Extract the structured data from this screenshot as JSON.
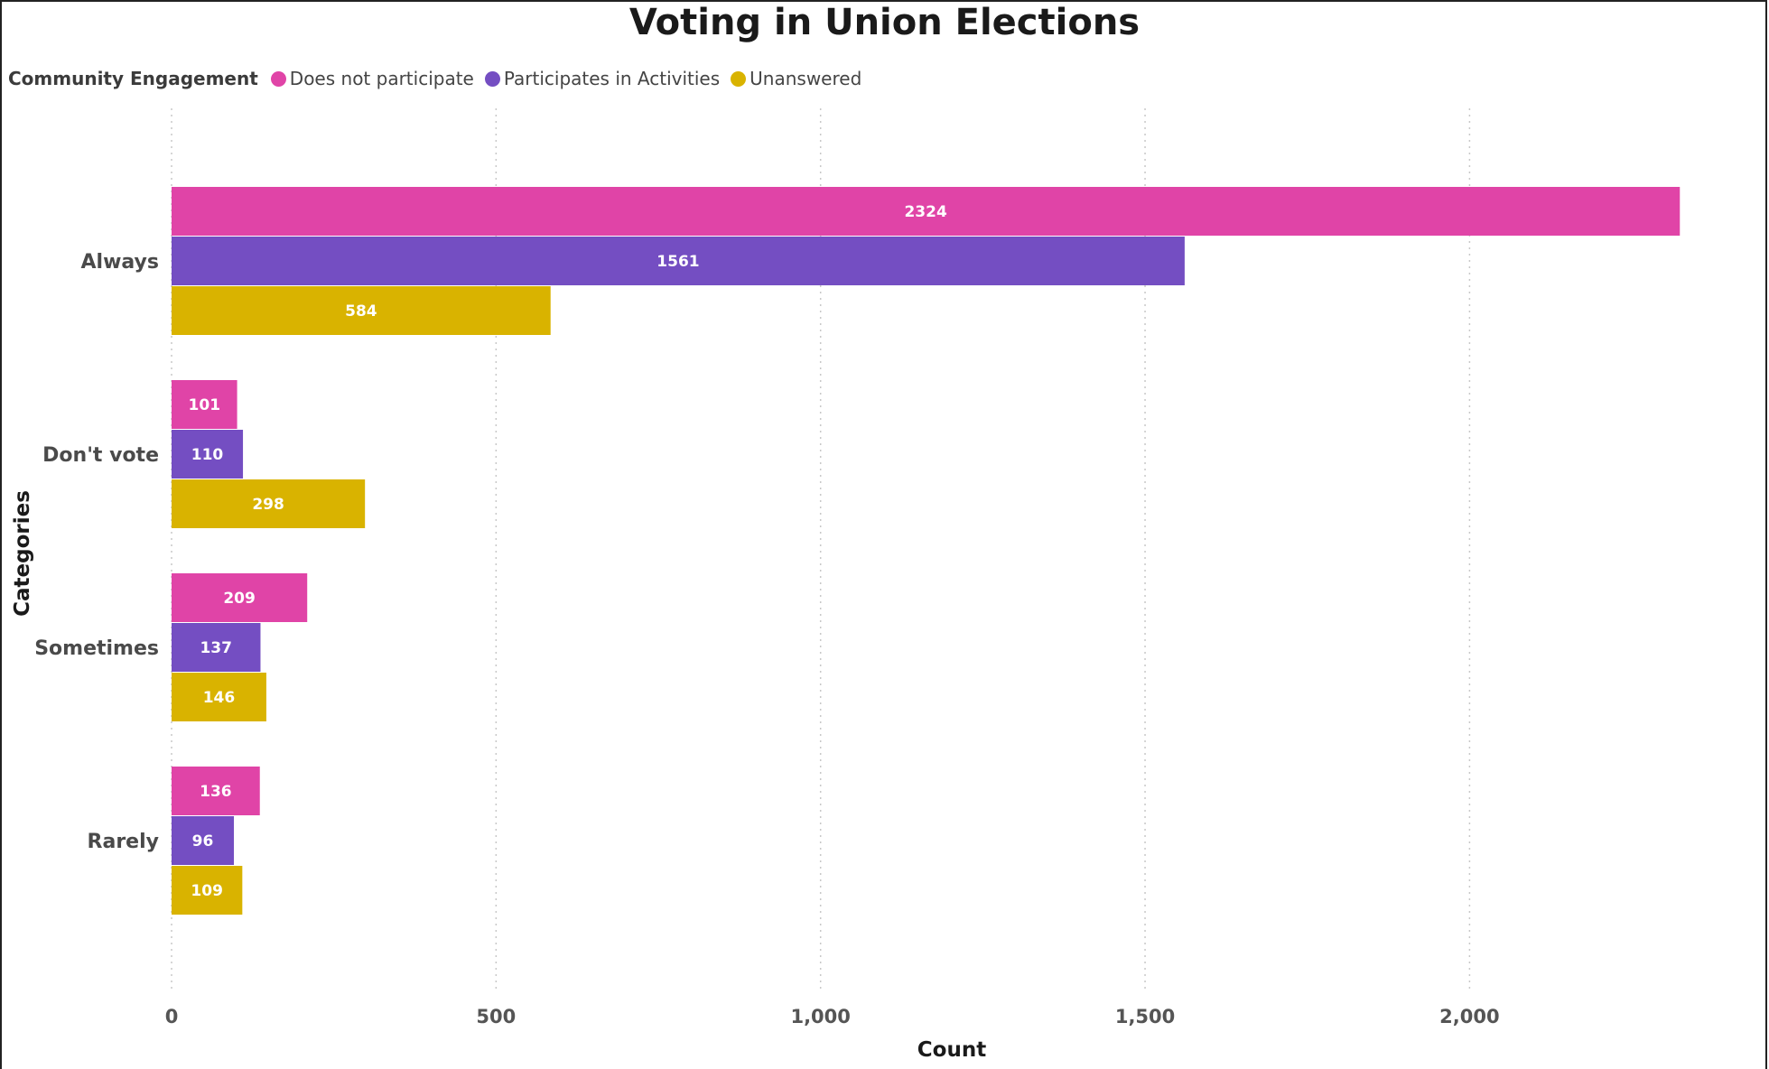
{
  "chart_data": {
    "type": "bar",
    "orientation": "horizontal",
    "title": "Voting in Union Elections",
    "xlabel": "Count",
    "ylabel": "Categories",
    "categories": [
      "Always",
      "Don't vote",
      "Sometimes",
      "Rarely"
    ],
    "legend_title": "Community Engagement",
    "legend_position": "top-left",
    "series": [
      {
        "name": "Does not participate",
        "color": "#E044A7",
        "values": [
          2324,
          101,
          209,
          136
        ]
      },
      {
        "name": "Participates in Activities",
        "color": "#744EC2",
        "values": [
          1561,
          110,
          137,
          96
        ]
      },
      {
        "name": "Unanswered",
        "color": "#D9B300",
        "values": [
          584,
          298,
          146,
          109
        ]
      }
    ],
    "xlim": [
      0,
      2400
    ],
    "xticks": [
      0,
      500,
      1000,
      1500,
      2000
    ],
    "xtick_labels": [
      "0",
      "500",
      "1,000",
      "1,500",
      "2,000"
    ],
    "grid": "vertical dotted"
  }
}
